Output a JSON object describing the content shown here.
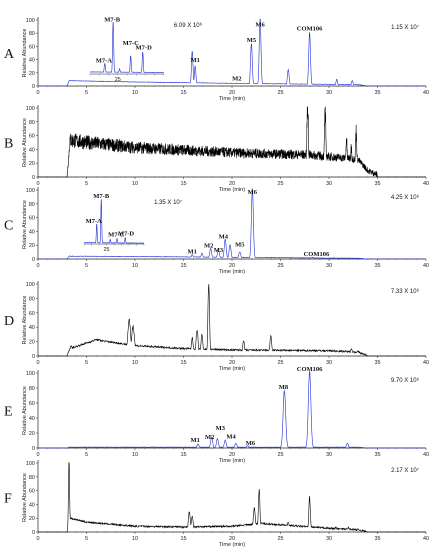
{
  "chart_data": [
    {
      "type": "line",
      "panel": "A",
      "color": "#1f2fd8",
      "noise": "low",
      "scale_label": "1.15 X 10⁷",
      "xlabel": "Time (min)",
      "ylabel": "Relative Abundance",
      "xlim": [
        0,
        40
      ],
      "ylim": [
        0,
        100
      ],
      "xticks": [
        0,
        5,
        10,
        15,
        20,
        25,
        30,
        35,
        40
      ],
      "yticks": [
        0,
        20,
        40,
        60,
        80,
        100
      ],
      "peaks": [
        [
          15.9,
          52,
          0.08
        ],
        [
          16.2,
          30,
          0.08
        ],
        [
          20.5,
          4,
          0.1
        ],
        [
          22.0,
          63,
          0.09
        ],
        [
          22.9,
          100,
          0.09
        ],
        [
          25.8,
          24,
          0.09
        ],
        [
          28.0,
          80,
          0.09
        ],
        [
          30.8,
          10,
          0.08
        ],
        [
          32.4,
          8,
          0.08
        ]
      ],
      "base": [
        [
          3,
          0
        ],
        [
          3.2,
          8
        ],
        [
          10,
          6
        ],
        [
          20,
          4
        ],
        [
          33,
          2
        ],
        [
          34,
          0
        ]
      ],
      "labels": [
        {
          "text": "M1",
          "x": 16.2,
          "y": 36
        },
        {
          "text": "M2",
          "x": 20.5,
          "y": 8
        },
        {
          "text": "M5",
          "x": 22.0,
          "y": 67
        },
        {
          "text": "M6",
          "x": 22.9,
          "y": 90
        },
        {
          "text": "COM106",
          "x": 28.0,
          "y": 84
        }
      ],
      "inset": {
        "scale_label": "6.09 X 10⁶",
        "tick_label": "25",
        "tick": 25,
        "xlim": [
          22,
          30
        ],
        "ylim": [
          0,
          100
        ],
        "peaks": [
          [
            23.6,
            20,
            0.07
          ],
          [
            24.5,
            100,
            0.06
          ],
          [
            25.2,
            10,
            0.06
          ],
          [
            26.4,
            35,
            0.06
          ],
          [
            27.7,
            42,
            0.06
          ]
        ],
        "base": [
          [
            22,
            4
          ],
          [
            30,
            3
          ]
        ],
        "labels": [
          {
            "text": "M7-A",
            "x": 23.5,
            "y": 23
          },
          {
            "text": "M7-B",
            "x": 24.4,
            "y": 103
          },
          {
            "text": "M7-C",
            "x": 26.4,
            "y": 57
          },
          {
            "text": "M7-D",
            "x": 27.8,
            "y": 48
          }
        ]
      }
    },
    {
      "type": "line",
      "panel": "B",
      "color": "#000000",
      "noise": "dense",
      "scale_label": "",
      "xlabel": "Time (min)",
      "ylabel": "Relative Abundance",
      "xlim": [
        0,
        40
      ],
      "ylim": [
        0,
        100
      ],
      "xticks": [
        0,
        5,
        10,
        15,
        20,
        25,
        30,
        35,
        40
      ],
      "yticks": [
        0,
        20,
        40,
        60,
        80,
        100
      ],
      "peaks": [
        [
          27.8,
          100,
          0.08
        ],
        [
          29.6,
          85,
          0.08
        ],
        [
          31.8,
          50,
          0.08
        ],
        [
          32.3,
          40,
          0.08
        ],
        [
          32.8,
          60,
          0.08
        ]
      ],
      "base": [
        [
          3,
          0
        ],
        [
          3.3,
          50
        ],
        [
          5,
          47
        ],
        [
          10,
          40
        ],
        [
          20,
          33
        ],
        [
          28,
          30
        ],
        [
          33,
          24
        ],
        [
          34,
          8
        ],
        [
          35,
          2
        ]
      ],
      "labels": []
    },
    {
      "type": "line",
      "panel": "C",
      "color": "#1f2fd8",
      "noise": "low",
      "scale_label": "4.25 X 10⁶",
      "xlabel": "Time (min)",
      "ylabel": "Relative Abundance",
      "xlim": [
        0,
        40
      ],
      "ylim": [
        0,
        100
      ],
      "xticks": [
        0,
        5,
        10,
        15,
        20,
        25,
        30,
        35,
        40
      ],
      "yticks": [
        0,
        20,
        40,
        60,
        80,
        100
      ],
      "peaks": [
        [
          15.9,
          6,
          0.1
        ],
        [
          16.9,
          8,
          0.1
        ],
        [
          17.8,
          15,
          0.1
        ],
        [
          18.6,
          14,
          0.1
        ],
        [
          19.3,
          28,
          0.1
        ],
        [
          19.8,
          20,
          0.1
        ],
        [
          20.8,
          10,
          0.1
        ],
        [
          22.1,
          100,
          0.1
        ],
        [
          28.3,
          2,
          0.1
        ]
      ],
      "base": [
        [
          3,
          0
        ],
        [
          3.2,
          4
        ],
        [
          15,
          3
        ],
        [
          23,
          2
        ],
        [
          33,
          1
        ],
        [
          34,
          0
        ]
      ],
      "labels": [
        {
          "text": "M1",
          "x": 15.9,
          "y": 8
        },
        {
          "text": "M2",
          "x": 17.6,
          "y": 17
        },
        {
          "text": "M3",
          "x": 18.6,
          "y": 10
        },
        {
          "text": "M4",
          "x": 19.1,
          "y": 30
        },
        {
          "text": "M5",
          "x": 20.8,
          "y": 18
        },
        {
          "text": "M6",
          "x": 22.1,
          "y": 94
        },
        {
          "text": "COM106",
          "x": 28.7,
          "y": 4
        }
      ],
      "inset": {
        "scale_label": "1.35 X 10⁷",
        "tick_label": "25",
        "tick": 25,
        "xlim": [
          22,
          30
        ],
        "ylim": [
          0,
          100
        ],
        "peaks": [
          [
            23.7,
            45,
            0.06
          ],
          [
            24.3,
            100,
            0.06
          ],
          [
            25.5,
            10,
            0.06
          ],
          [
            26.4,
            12,
            0.06
          ],
          [
            27.5,
            14,
            0.06
          ]
        ],
        "base": [
          [
            22,
            3
          ],
          [
            30,
            2
          ]
        ],
        "labels": [
          {
            "text": "M7-A",
            "x": 23.3,
            "y": 48
          },
          {
            "text": "M7-B",
            "x": 24.3,
            "y": 104
          },
          {
            "text": "M7-C",
            "x": 26.3,
            "y": 17
          },
          {
            "text": "M7-D",
            "x": 27.6,
            "y": 19
          }
        ]
      }
    },
    {
      "type": "line",
      "panel": "D",
      "color": "#000000",
      "noise": "medium",
      "scale_label": "7.33 X 10⁶",
      "xlabel": "Time (min)",
      "ylabel": "Relative Abundance",
      "xlim": [
        0,
        40
      ],
      "ylim": [
        0,
        100
      ],
      "xticks": [
        0,
        5,
        10,
        15,
        20,
        25,
        30,
        35,
        40
      ],
      "yticks": [
        0,
        20,
        40,
        60,
        80,
        100
      ],
      "peaks": [
        [
          3.4,
          14,
          0.1
        ],
        [
          6.0,
          22,
          0.2
        ],
        [
          9.4,
          47,
          0.15
        ],
        [
          9.8,
          40,
          0.15
        ],
        [
          15.9,
          24,
          0.1
        ],
        [
          16.4,
          36,
          0.1
        ],
        [
          16.9,
          28,
          0.1
        ],
        [
          17.6,
          100,
          0.08
        ],
        [
          21.2,
          20,
          0.1
        ],
        [
          24.0,
          26,
          0.1
        ],
        [
          32.3,
          10,
          0.1
        ],
        [
          33.0,
          6,
          0.1
        ]
      ],
      "base": [
        [
          3,
          0
        ],
        [
          3.3,
          10
        ],
        [
          6,
          22
        ],
        [
          10,
          14
        ],
        [
          15,
          10
        ],
        [
          20,
          8
        ],
        [
          30,
          7
        ],
        [
          33,
          5
        ],
        [
          34,
          0
        ]
      ],
      "labels": []
    },
    {
      "type": "line",
      "panel": "E",
      "color": "#1f2fd8",
      "noise": "low",
      "scale_label": "9.70 X 10⁶",
      "xlabel": "Time (min)",
      "ylabel": "Relative Abundance",
      "xlim": [
        0,
        40
      ],
      "ylim": [
        0,
        100
      ],
      "xticks": [
        0,
        5,
        10,
        15,
        20,
        25,
        30,
        35,
        40
      ],
      "yticks": [
        0,
        20,
        40,
        60,
        80,
        100
      ],
      "peaks": [
        [
          16.5,
          5,
          0.1
        ],
        [
          17.9,
          14,
          0.1
        ],
        [
          18.5,
          12,
          0.1
        ],
        [
          19.3,
          10,
          0.1
        ],
        [
          20.4,
          6,
          0.1
        ],
        [
          21.6,
          3,
          0.1
        ],
        [
          25.4,
          75,
          0.13
        ],
        [
          28.0,
          100,
          0.13
        ],
        [
          31.9,
          6,
          0.1
        ]
      ],
      "base": [
        [
          3,
          0
        ],
        [
          3.2,
          1
        ],
        [
          33,
          1
        ],
        [
          34,
          0
        ]
      ],
      "labels": [
        {
          "text": "M1",
          "x": 16.2,
          "y": 8
        },
        {
          "text": "M2",
          "x": 17.7,
          "y": 12
        },
        {
          "text": "M3",
          "x": 18.8,
          "y": 24
        },
        {
          "text": "M4",
          "x": 19.9,
          "y": 13
        },
        {
          "text": "M6",
          "x": 21.9,
          "y": 4
        },
        {
          "text": "M8",
          "x": 25.3,
          "y": 79
        },
        {
          "text": "COM106",
          "x": 28.0,
          "y": 103
        }
      ]
    },
    {
      "type": "line",
      "panel": "F",
      "color": "#000000",
      "noise": "medium",
      "scale_label": "2.17 X 10⁷",
      "xlabel": "Time (min)",
      "ylabel": "Relative Abundance",
      "xlim": [
        0,
        40
      ],
      "ylim": [
        0,
        100
      ],
      "xticks": [
        0,
        5,
        10,
        15,
        20,
        25,
        30,
        35,
        40
      ],
      "yticks": [
        0,
        20,
        40,
        60,
        80,
        100
      ],
      "peaks": [
        [
          3.2,
          100,
          0.06
        ],
        [
          15.6,
          28,
          0.1
        ],
        [
          15.9,
          22,
          0.1
        ],
        [
          22.3,
          35,
          0.1
        ],
        [
          22.8,
          60,
          0.08
        ],
        [
          25.8,
          14,
          0.1
        ],
        [
          28.0,
          48,
          0.08
        ],
        [
          30.7,
          6,
          0.1
        ],
        [
          32.0,
          6,
          0.1
        ]
      ],
      "base": [
        [
          3,
          0
        ],
        [
          3.2,
          20
        ],
        [
          5,
          14
        ],
        [
          10,
          8
        ],
        [
          15,
          7
        ],
        [
          20,
          8
        ],
        [
          23,
          12
        ],
        [
          27,
          8
        ],
        [
          30,
          5
        ],
        [
          33,
          3
        ],
        [
          34,
          0
        ]
      ],
      "labels": []
    }
  ]
}
